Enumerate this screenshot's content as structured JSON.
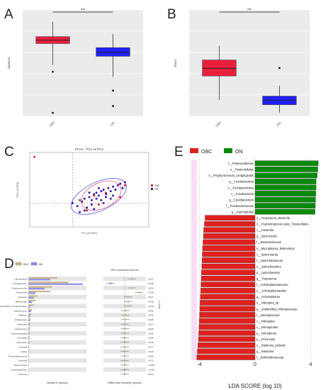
{
  "panels": {
    "a": {
      "letter": "A"
    },
    "b": {
      "letter": "B"
    },
    "c": {
      "letter": "C"
    },
    "d": {
      "letter": "D"
    },
    "e": {
      "letter": "E"
    }
  },
  "chart_data": [
    {
      "id": "A",
      "type": "box",
      "title": "",
      "ylabel": "shannon",
      "significance": "***",
      "categories": [
        "OBC",
        "ON"
      ],
      "colors": [
        "#e8203c",
        "#1f1fff"
      ],
      "ylim": [
        -1.6,
        1.5
      ],
      "boxes": [
        {
          "name": "OBC",
          "min": -0.1,
          "q1": 0.52,
          "median": 0.62,
          "q3": 0.72,
          "max": 1.15,
          "outliers": [
            -0.3,
            -1.5
          ]
        },
        {
          "name": "ON",
          "min": -0.45,
          "q1": 0.15,
          "median": 0.27,
          "q3": 0.4,
          "max": 0.8,
          "outliers": [
            -0.85,
            -1.3
          ]
        }
      ]
    },
    {
      "id": "B",
      "type": "box",
      "title": "",
      "ylabel": "chao1",
      "significance": "***",
      "categories": [
        "OBC",
        "ON"
      ],
      "colors": [
        "#e8203c",
        "#1f1fff"
      ],
      "ylim": [
        760,
        2500
      ],
      "boxes": [
        {
          "name": "OBC",
          "min": 1030,
          "q1": 1420,
          "median": 1545,
          "q3": 1680,
          "max": 1910,
          "outliers": []
        },
        {
          "name": "ON",
          "min": 820,
          "q1": 950,
          "median": 1020,
          "q3": 1090,
          "max": 1260,
          "outliers": [
            1550
          ]
        }
      ]
    },
    {
      "id": "C",
      "type": "scatter",
      "title": "PCoA - PC1 vs PC2",
      "xlabel": "PC1 (22.95%)",
      "ylabel": "PC2 (10.89%)",
      "legend": [
        "OBC",
        "ON"
      ],
      "colors": [
        "#e8203c",
        "#3a1aa8"
      ],
      "xlim": [
        -0.18,
        0.32
      ],
      "ylim": [
        -0.16,
        0.34
      ],
      "series": [
        {
          "name": "OBC",
          "x": [
            -0.16,
            0.03,
            0.09,
            0.11,
            0.14,
            0.18,
            0.2,
            0.22,
            0.06
          ],
          "y": [
            0.31,
            0.02,
            0.05,
            -0.01,
            0.07,
            0.09,
            0.04,
            0.12,
            -0.05
          ]
        },
        {
          "name": "ON",
          "x": [
            0.0,
            0.02,
            0.04,
            0.05,
            0.06,
            0.07,
            0.08,
            0.09,
            0.1,
            0.1,
            0.11,
            0.12,
            0.12,
            0.13,
            0.14,
            0.15,
            0.16,
            0.17,
            0.18,
            0.19,
            0.2,
            0.21,
            0.22,
            0.05,
            0.08,
            0.13,
            0.16,
            0.03,
            0.09,
            0.14,
            0.07,
            0.11,
            0.17
          ],
          "y": [
            0.0,
            -0.02,
            0.01,
            0.03,
            -0.03,
            0.04,
            0.02,
            0.06,
            0.03,
            0.07,
            0.05,
            0.08,
            0.02,
            0.09,
            0.06,
            0.1,
            0.08,
            0.11,
            0.09,
            0.12,
            0.13,
            0.1,
            0.14,
            -0.05,
            -0.01,
            0.0,
            0.03,
            -0.06,
            -0.04,
            0.04,
            0.07,
            0.1,
            0.05
          ]
        }
      ]
    },
    {
      "id": "D",
      "type": "bar",
      "orientation": "horizontal",
      "legend": [
        "OBC",
        "ON"
      ],
      "colors": [
        "#cbb48a",
        "#8e8ee6"
      ],
      "xlabel_left": "Means in groups",
      "xlabel_right": "Difference between groups",
      "title_right": "95% confidence intervals",
      "ylabel_right": "p value",
      "categories": [
        "Haemophilus",
        "Fusobacterium",
        "Porphyromonas",
        "Treponema",
        "Neisseria",
        "Bacteroides",
        "unidentified_Fusobacteriales",
        "Streptococcus",
        "Filifactor",
        "Oribacterium",
        "Veillonella",
        "Actinomyces",
        "Capnocytophaga",
        "Prevotella",
        "Leptotrichia",
        "Gemella",
        "Rothia",
        "Peptostreptococcus",
        "Catonella",
        "Selenomonas",
        "Corynebacterium",
        "Lautropia"
      ],
      "obc_means": [
        0.016,
        0.022,
        0.013,
        0.012,
        0.005,
        0.004,
        0.003,
        0.002,
        0.0015,
        0.0012,
        0.001,
        0.0009,
        0.0008,
        0.0007,
        0.0006,
        0.0005,
        0.0004,
        0.0004,
        0.0003,
        0.0003,
        0.0002,
        0.0002
      ],
      "on_means": [
        0.012,
        0.03,
        0.009,
        0.004,
        0.003,
        0.002,
        0.001,
        0.0015,
        0.001,
        0.0009,
        0.0008,
        0.0007,
        0.0006,
        0.0006,
        0.0005,
        0.0004,
        0.0004,
        0.0003,
        0.0003,
        0.0002,
        0.0002,
        0.0002
      ],
      "differences": [
        0.004,
        -0.008,
        0.004,
        0.008,
        0.002,
        0.002,
        0.002,
        0.0005,
        0.0005,
        0.0003,
        0.0002,
        0.0002,
        0.0002,
        0.0001,
        0.0001,
        0.0001,
        0.0,
        0.0001,
        0.0,
        0.0001,
        0.0,
        0.0
      ],
      "p_values": [
        "0.017",
        "0.018",
        "0.026",
        "0.036",
        "0.047",
        "0.038",
        "0.036",
        "0.046",
        "0.046",
        "0.035",
        "0.017",
        "0.025",
        "0.046",
        "0.046",
        "0.035",
        "0.037",
        "0.049",
        "0.045",
        "0.012",
        "<0.001",
        "<0.001",
        "0.013"
      ]
    },
    {
      "id": "E",
      "type": "bar",
      "orientation": "horizontal",
      "xlabel": "LDA SCORE (log 10)",
      "legend": [
        "OBC",
        "ON"
      ],
      "colors": [
        "#e0201e",
        "#0a8a0a"
      ],
      "xlim": [
        -5,
        5
      ],
      "xticks": [
        -4,
        0,
        4
      ],
      "categories": [
        "f__Pasteurellaceae",
        "o__Pasteurellales",
        "s__Porphyromonas_canigingivalis",
        "g__Fusobacteriota",
        "o__Fusobacteriales",
        "c__Fusobacteriia",
        "g__Fusobacterium",
        "f__Fusobacteriaceae",
        "g__Haemophilus",
        "s__Treponema_denticola",
        "o__Peptostreptococcales_Tissierellales",
        "c__Clostridia",
        "g__Bacteroides",
        "f__Bacteroidaceae",
        "s__Mycoplasma_felimunitum",
        "c__Spirochaetia",
        "f__Spirochaetaceae",
        "o__Spirochaetales",
        "p__Spirochaetota",
        "g__Treponema",
        "f__Acholeplasmataceae",
        "o__Acholeplasmatales",
        "g__Acholeplasma",
        "s__Nitrospira_sp",
        "g__unidentified_Nitrospiraceae",
        "f__Nitrospiraceae",
        "c__Nitrospiria",
        "o__Nitrospirales",
        "p__Nitrospirota",
        "p__Firmicutes",
        "s__Ralstonia_pickettii",
        "g__Ralstonia",
        "f__Burkholderiaceae"
      ],
      "values": [
        4.55,
        4.52,
        4.48,
        4.4,
        4.4,
        4.38,
        4.36,
        4.34,
        4.32,
        -3.6,
        -3.65,
        -3.7,
        -3.72,
        -3.75,
        -3.78,
        -3.8,
        -3.82,
        -3.84,
        -3.86,
        -3.88,
        -3.9,
        -3.92,
        -3.94,
        -3.96,
        -3.98,
        -4.0,
        -4.02,
        -4.04,
        -4.06,
        -4.08,
        -4.12,
        -4.16,
        -4.2
      ]
    }
  ]
}
